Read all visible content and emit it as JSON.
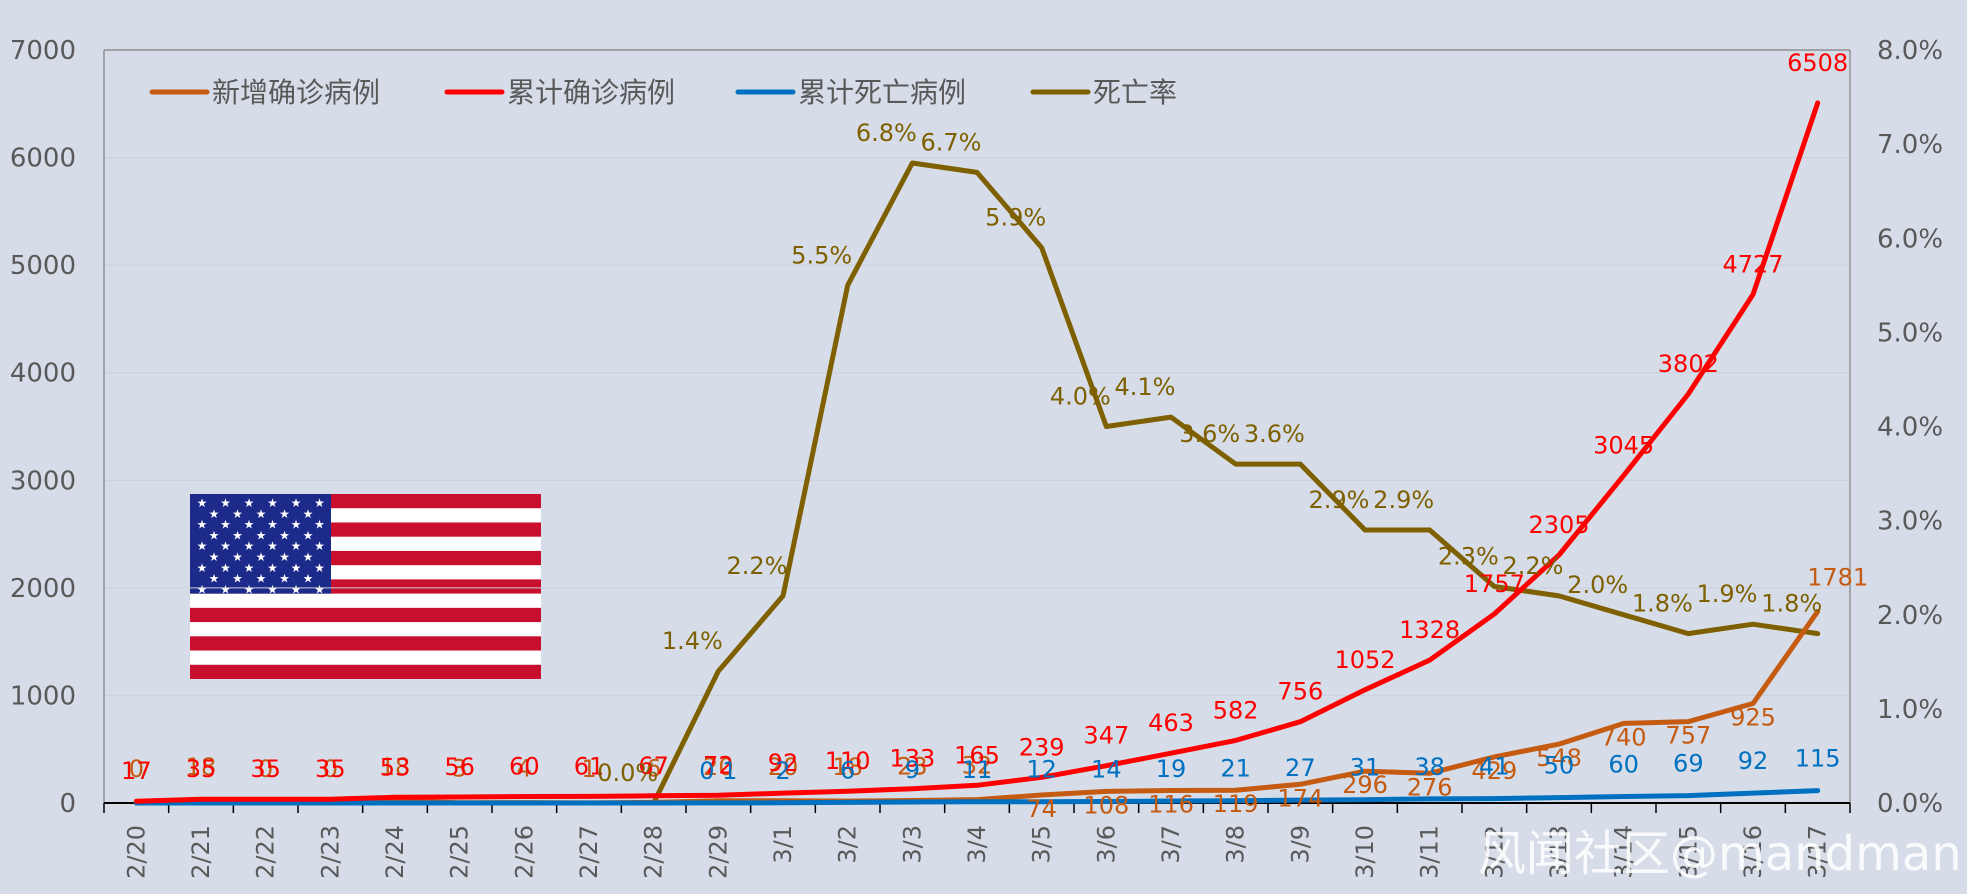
{
  "chart_data": {
    "type": "line",
    "title": "",
    "x": [
      "2/20",
      "2/21",
      "2/22",
      "2/23",
      "2/24",
      "2/25",
      "2/26",
      "2/27",
      "2/28",
      "2/29",
      "3/1",
      "3/2",
      "3/3",
      "3/4",
      "3/5",
      "3/6",
      "3/7",
      "3/8",
      "3/9",
      "3/10",
      "3/11",
      "3/12",
      "3/13",
      "3/14",
      "3/15",
      "3/16",
      "3/17"
    ],
    "y_left": {
      "ylim": [
        0,
        7000
      ],
      "ticks": [
        0,
        1000,
        2000,
        3000,
        4000,
        5000,
        6000,
        7000
      ]
    },
    "y_right": {
      "ylim": [
        0,
        8.0
      ],
      "ticks": [
        "0.0%",
        "1.0%",
        "2.0%",
        "3.0%",
        "4.0%",
        "5.0%",
        "6.0%",
        "7.0%",
        "8.0%"
      ]
    },
    "grid": "horizontal",
    "legend_position": "top-left",
    "series": [
      {
        "name": "新增确诊病例",
        "color": "#c55a11",
        "axis": "left",
        "values": [
          0,
          18,
          0,
          0,
          18,
          3,
          4,
          1,
          6,
          20,
          20,
          18,
          23,
          32,
          74,
          108,
          116,
          119,
          174,
          296,
          276,
          429,
          548,
          740,
          757,
          925,
          1781
        ],
        "labels": [
          "0",
          "18",
          "0",
          "0",
          "18",
          "3",
          "4",
          "1",
          "6",
          "20",
          "20",
          "18",
          "23",
          "32",
          "74",
          "108",
          "116",
          "119",
          "174",
          "296",
          "276",
          "429",
          "548",
          "740",
          "757",
          "925",
          "1781"
        ]
      },
      {
        "name": "累计确诊病例",
        "color": "#ff0000",
        "axis": "left",
        "values": [
          17,
          35,
          35,
          35,
          53,
          56,
          60,
          61,
          67,
          72,
          92,
          110,
          133,
          165,
          239,
          347,
          463,
          582,
          756,
          1052,
          1328,
          1757,
          2305,
          3045,
          3802,
          4727,
          6508
        ],
        "labels": [
          "17",
          "35",
          "35",
          "35",
          "53",
          "56",
          "60",
          "61",
          "67",
          "72",
          "92",
          "110",
          "133",
          "165",
          "239",
          "347",
          "463",
          "582",
          "756",
          "1052",
          "1328",
          "1757",
          "2305",
          "3045",
          "3802",
          "4727",
          "6508"
        ]
      },
      {
        "name": "累计死亡病例",
        "color": "#0070c0",
        "axis": "left",
        "values": [
          0,
          0,
          0,
          0,
          0,
          0,
          0,
          0,
          0,
          1,
          2,
          6,
          9,
          11,
          12,
          14,
          19,
          21,
          27,
          31,
          38,
          41,
          50,
          60,
          69,
          92,
          115
        ],
        "labels": [
          "",
          "",
          "",
          "",
          "",
          "",
          "",
          "",
          "",
          "0 1",
          "2",
          "6",
          "9",
          "11",
          "12",
          "14",
          "19",
          "21",
          "27",
          "31",
          "38",
          "41",
          "50",
          "60",
          "69",
          "92",
          "115"
        ]
      },
      {
        "name": "死亡率",
        "color": "#7f6000",
        "axis": "right",
        "values": [
          0,
          0,
          0,
          0,
          0,
          0,
          0,
          0,
          0,
          1.4,
          2.2,
          5.5,
          6.8,
          6.7,
          5.9,
          4.0,
          4.1,
          3.6,
          3.6,
          2.9,
          2.9,
          2.3,
          2.2,
          2.0,
          1.8,
          1.9,
          1.8
        ],
        "labels": [
          "",
          "",
          "",
          "",
          "",
          "",
          "",
          "",
          "0.0%",
          "1.4%",
          "2.2%",
          "5.5%",
          "6.8%",
          "6.7%",
          "5.9%",
          "4.0%",
          "4.1%",
          "3.6%",
          "3.6%",
          "2.9%",
          "2.9%",
          "2.3%",
          "2.2%",
          "2.0%",
          "1.8%",
          "1.9%",
          "1.8%"
        ]
      }
    ]
  },
  "image": {
    "flag": "united-states-flag"
  },
  "watermark": "风闻社区@mandman"
}
